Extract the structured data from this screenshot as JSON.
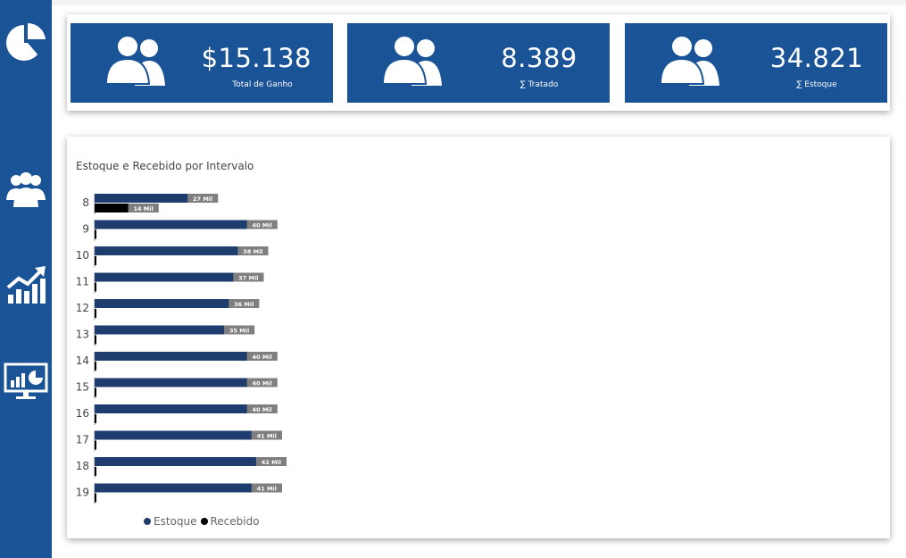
{
  "kpis": [
    {
      "value": "$15.138",
      "label": "Total de Ganho",
      "icon": "users-icon"
    },
    {
      "value": "8.389",
      "label": "∑ Tratado",
      "icon": "users-icon"
    },
    {
      "value": "34.821",
      "label": "∑ Estoque",
      "icon": "users-icon"
    }
  ],
  "colors": {
    "brand": "#1a5396",
    "estoque": "#1f3c6e",
    "recebido": "#000000",
    "label_bg": "#7f7f7f"
  },
  "chart_data": {
    "type": "bar",
    "orientation": "horizontal",
    "title": "Estoque e Recebido por Intervalo",
    "categories": [
      "8",
      "9",
      "10",
      "11",
      "12",
      "13",
      "14",
      "15",
      "16",
      "17",
      "18",
      "19"
    ],
    "series": [
      {
        "name": "Estoque",
        "values": [
          27000,
          40000,
          38000,
          37000,
          36000,
          35000,
          40000,
          40000,
          40000,
          41000,
          42000,
          41000
        ],
        "labels": [
          "27 Mil",
          "40 Mil",
          "38 Mil",
          "37 Mil",
          "36 Mil",
          "35 Mil",
          "40 Mil",
          "40 Mil",
          "40 Mil",
          "41 Mil",
          "42 Mil",
          "41 Mil"
        ]
      },
      {
        "name": "Recebido",
        "values": [
          14000,
          0,
          0,
          0,
          0,
          0,
          0,
          0,
          0,
          0,
          0,
          0
        ],
        "labels": [
          "14 Mil",
          "",
          "",
          "",
          "",
          "",
          "",
          "",
          "",
          "",
          "",
          ""
        ]
      }
    ],
    "legend": [
      "Estoque",
      "Recebido"
    ],
    "legend_position": "bottom-left",
    "grid": false
  }
}
